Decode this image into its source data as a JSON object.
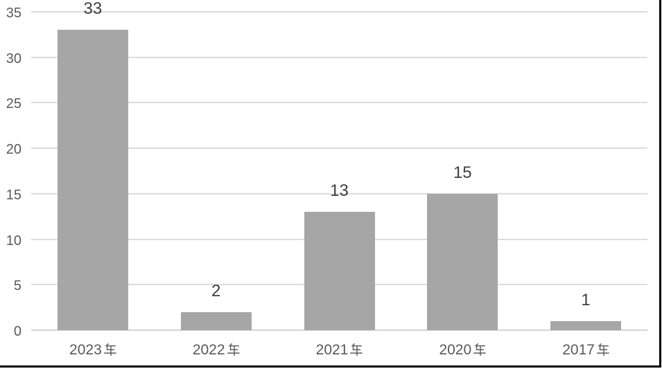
{
  "chart_data": {
    "type": "bar",
    "title": "",
    "xlabel": "",
    "ylabel": "",
    "categories": [
      "2023年",
      "2022年",
      "2021年",
      "2020年",
      "2017年"
    ],
    "values": [
      33,
      2,
      13,
      15,
      1
    ],
    "data_labels": [
      "33",
      "2",
      "13",
      "15",
      "1"
    ],
    "ylim": [
      0,
      35
    ],
    "yticks": [
      0,
      5,
      10,
      15,
      20,
      25,
      30,
      35
    ],
    "grid": true,
    "legend": false,
    "bar_gap_layout": "single-series, bar width ~57% of category slot",
    "colors": {
      "bar": "#a6a6a6",
      "gridline": "#dcdcdc",
      "axis_line": "#d4d4d4",
      "tick_label": "#595959",
      "category_label": "#595959",
      "data_label": "#3f3f3f",
      "figure_border": "#000000",
      "background": "#ffffff"
    }
  }
}
